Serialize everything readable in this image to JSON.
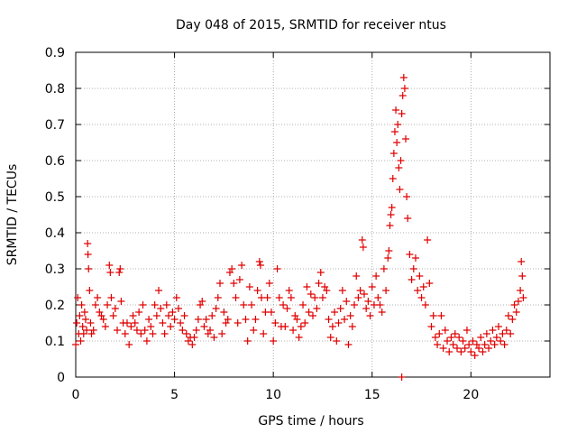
{
  "chart_data": {
    "type": "scatter",
    "title": "Day 048 of 2015, SRMTID for receiver ntus",
    "xlabel": "GPS time / hours",
    "ylabel": "SRMTID / TECUs",
    "xlim": [
      0,
      24
    ],
    "ylim": [
      0,
      0.9
    ],
    "xticks": [
      0,
      5,
      10,
      15,
      20
    ],
    "xtick_labels": [
      "0",
      "5",
      "10",
      "15",
      "20"
    ],
    "yticks": [
      0,
      0.1,
      0.2,
      0.3,
      0.4,
      0.5,
      0.6,
      0.7,
      0.8,
      0.9
    ],
    "ytick_labels": [
      "0",
      "0.1",
      "0.2",
      "0.3",
      "0.4",
      "0.5",
      "0.6",
      "0.7",
      "0.8",
      "0.9"
    ],
    "grid": true,
    "marker": "plus",
    "color": "#e00000",
    "series": [
      {
        "name": "SRMTID",
        "points": [
          [
            0.0,
            0.09
          ],
          [
            0.05,
            0.15
          ],
          [
            0.1,
            0.22
          ],
          [
            0.15,
            0.12
          ],
          [
            0.2,
            0.17
          ],
          [
            0.25,
            0.1
          ],
          [
            0.3,
            0.2
          ],
          [
            0.35,
            0.14
          ],
          [
            0.4,
            0.12
          ],
          [
            0.45,
            0.18
          ],
          [
            0.5,
            0.16
          ],
          [
            0.55,
            0.13
          ],
          [
            0.6,
            0.37
          ],
          [
            0.62,
            0.34
          ],
          [
            0.65,
            0.3
          ],
          [
            0.7,
            0.24
          ],
          [
            0.75,
            0.15
          ],
          [
            0.8,
            0.12
          ],
          [
            0.9,
            0.13
          ],
          [
            1.0,
            0.2
          ],
          [
            1.1,
            0.22
          ],
          [
            1.2,
            0.18
          ],
          [
            1.3,
            0.17
          ],
          [
            1.4,
            0.16
          ],
          [
            1.5,
            0.14
          ],
          [
            1.6,
            0.2
          ],
          [
            1.7,
            0.31
          ],
          [
            1.75,
            0.29
          ],
          [
            1.8,
            0.22
          ],
          [
            1.9,
            0.17
          ],
          [
            2.0,
            0.19
          ],
          [
            2.1,
            0.13
          ],
          [
            2.2,
            0.29
          ],
          [
            2.25,
            0.3
          ],
          [
            2.3,
            0.21
          ],
          [
            2.4,
            0.15
          ],
          [
            2.5,
            0.12
          ],
          [
            2.6,
            0.15
          ],
          [
            2.7,
            0.09
          ],
          [
            2.8,
            0.14
          ],
          [
            2.9,
            0.17
          ],
          [
            3.0,
            0.15
          ],
          [
            3.1,
            0.13
          ],
          [
            3.2,
            0.18
          ],
          [
            3.3,
            0.12
          ],
          [
            3.4,
            0.2
          ],
          [
            3.5,
            0.13
          ],
          [
            3.6,
            0.1
          ],
          [
            3.7,
            0.16
          ],
          [
            3.8,
            0.14
          ],
          [
            3.9,
            0.12
          ],
          [
            4.0,
            0.2
          ],
          [
            4.1,
            0.17
          ],
          [
            4.2,
            0.24
          ],
          [
            4.3,
            0.19
          ],
          [
            4.4,
            0.15
          ],
          [
            4.5,
            0.12
          ],
          [
            4.6,
            0.2
          ],
          [
            4.7,
            0.17
          ],
          [
            4.8,
            0.14
          ],
          [
            4.9,
            0.18
          ],
          [
            5.0,
            0.16
          ],
          [
            5.1,
            0.22
          ],
          [
            5.2,
            0.19
          ],
          [
            5.3,
            0.15
          ],
          [
            5.4,
            0.13
          ],
          [
            5.5,
            0.17
          ],
          [
            5.6,
            0.12
          ],
          [
            5.7,
            0.1
          ],
          [
            5.8,
            0.11
          ],
          [
            5.9,
            0.09
          ],
          [
            6.0,
            0.11
          ],
          [
            6.1,
            0.13
          ],
          [
            6.2,
            0.16
          ],
          [
            6.3,
            0.2
          ],
          [
            6.4,
            0.21
          ],
          [
            6.5,
            0.14
          ],
          [
            6.6,
            0.16
          ],
          [
            6.7,
            0.12
          ],
          [
            6.8,
            0.13
          ],
          [
            6.9,
            0.17
          ],
          [
            7.0,
            0.11
          ],
          [
            7.1,
            0.19
          ],
          [
            7.2,
            0.22
          ],
          [
            7.3,
            0.26
          ],
          [
            7.4,
            0.12
          ],
          [
            7.5,
            0.18
          ],
          [
            7.6,
            0.15
          ],
          [
            7.7,
            0.16
          ],
          [
            7.8,
            0.29
          ],
          [
            7.9,
            0.3
          ],
          [
            8.0,
            0.26
          ],
          [
            8.1,
            0.22
          ],
          [
            8.2,
            0.15
          ],
          [
            8.3,
            0.27
          ],
          [
            8.4,
            0.31
          ],
          [
            8.5,
            0.2
          ],
          [
            8.6,
            0.16
          ],
          [
            8.7,
            0.1
          ],
          [
            8.8,
            0.25
          ],
          [
            8.9,
            0.2
          ],
          [
            9.0,
            0.13
          ],
          [
            9.1,
            0.16
          ],
          [
            9.2,
            0.24
          ],
          [
            9.3,
            0.32
          ],
          [
            9.35,
            0.31
          ],
          [
            9.4,
            0.22
          ],
          [
            9.5,
            0.12
          ],
          [
            9.6,
            0.18
          ],
          [
            9.7,
            0.22
          ],
          [
            9.8,
            0.26
          ],
          [
            9.9,
            0.18
          ],
          [
            10.0,
            0.1
          ],
          [
            10.1,
            0.15
          ],
          [
            10.2,
            0.3
          ],
          [
            10.3,
            0.22
          ],
          [
            10.4,
            0.14
          ],
          [
            10.5,
            0.2
          ],
          [
            10.6,
            0.14
          ],
          [
            10.7,
            0.19
          ],
          [
            10.8,
            0.24
          ],
          [
            10.9,
            0.22
          ],
          [
            11.0,
            0.13
          ],
          [
            11.1,
            0.17
          ],
          [
            11.2,
            0.16
          ],
          [
            11.3,
            0.11
          ],
          [
            11.4,
            0.14
          ],
          [
            11.5,
            0.2
          ],
          [
            11.6,
            0.15
          ],
          [
            11.7,
            0.25
          ],
          [
            11.8,
            0.18
          ],
          [
            11.9,
            0.23
          ],
          [
            12.0,
            0.17
          ],
          [
            12.1,
            0.22
          ],
          [
            12.2,
            0.19
          ],
          [
            12.3,
            0.26
          ],
          [
            12.4,
            0.29
          ],
          [
            12.5,
            0.22
          ],
          [
            12.6,
            0.25
          ],
          [
            12.7,
            0.24
          ],
          [
            12.8,
            0.16
          ],
          [
            12.9,
            0.11
          ],
          [
            13.0,
            0.14
          ],
          [
            13.1,
            0.18
          ],
          [
            13.2,
            0.1
          ],
          [
            13.3,
            0.15
          ],
          [
            13.4,
            0.19
          ],
          [
            13.5,
            0.24
          ],
          [
            13.6,
            0.16
          ],
          [
            13.7,
            0.21
          ],
          [
            13.8,
            0.09
          ],
          [
            13.9,
            0.17
          ],
          [
            14.0,
            0.14
          ],
          [
            14.1,
            0.2
          ],
          [
            14.2,
            0.28
          ],
          [
            14.3,
            0.22
          ],
          [
            14.4,
            0.24
          ],
          [
            14.5,
            0.38
          ],
          [
            14.55,
            0.36
          ],
          [
            14.6,
            0.23
          ],
          [
            14.7,
            0.19
          ],
          [
            14.8,
            0.21
          ],
          [
            14.9,
            0.17
          ],
          [
            15.0,
            0.25
          ],
          [
            15.1,
            0.2
          ],
          [
            15.2,
            0.28
          ],
          [
            15.3,
            0.22
          ],
          [
            15.4,
            0.2
          ],
          [
            15.5,
            0.18
          ],
          [
            15.6,
            0.3
          ],
          [
            15.7,
            0.24
          ],
          [
            15.8,
            0.33
          ],
          [
            15.85,
            0.35
          ],
          [
            15.9,
            0.42
          ],
          [
            15.95,
            0.45
          ],
          [
            16.0,
            0.47
          ],
          [
            16.05,
            0.55
          ],
          [
            16.1,
            0.62
          ],
          [
            16.15,
            0.68
          ],
          [
            16.2,
            0.74
          ],
          [
            16.25,
            0.65
          ],
          [
            16.3,
            0.7
          ],
          [
            16.35,
            0.58
          ],
          [
            16.4,
            0.52
          ],
          [
            16.45,
            0.6
          ],
          [
            16.5,
            0.73
          ],
          [
            16.55,
            0.78
          ],
          [
            16.6,
            0.83
          ],
          [
            16.65,
            0.8
          ],
          [
            16.7,
            0.66
          ],
          [
            16.75,
            0.5
          ],
          [
            16.8,
            0.44
          ],
          [
            16.9,
            0.34
          ],
          [
            17.0,
            0.27
          ],
          [
            17.1,
            0.3
          ],
          [
            17.2,
            0.33
          ],
          [
            17.3,
            0.24
          ],
          [
            17.4,
            0.28
          ],
          [
            17.5,
            0.22
          ],
          [
            17.6,
            0.25
          ],
          [
            17.7,
            0.2
          ],
          [
            17.8,
            0.38
          ],
          [
            17.9,
            0.26
          ],
          [
            18.0,
            0.14
          ],
          [
            18.1,
            0.17
          ],
          [
            18.2,
            0.11
          ],
          [
            18.3,
            0.09
          ],
          [
            18.4,
            0.12
          ],
          [
            18.5,
            0.17
          ],
          [
            18.6,
            0.08
          ],
          [
            18.7,
            0.13
          ],
          [
            18.8,
            0.1
          ],
          [
            18.9,
            0.07
          ],
          [
            19.0,
            0.11
          ],
          [
            19.1,
            0.09
          ],
          [
            19.2,
            0.12
          ],
          [
            19.3,
            0.08
          ],
          [
            19.4,
            0.11
          ],
          [
            19.5,
            0.07
          ],
          [
            19.6,
            0.1
          ],
          [
            19.7,
            0.08
          ],
          [
            19.8,
            0.13
          ],
          [
            19.9,
            0.09
          ],
          [
            20.0,
            0.07
          ],
          [
            20.1,
            0.1
          ],
          [
            20.2,
            0.06
          ],
          [
            20.3,
            0.09
          ],
          [
            20.4,
            0.08
          ],
          [
            20.5,
            0.11
          ],
          [
            20.6,
            0.07
          ],
          [
            20.7,
            0.09
          ],
          [
            20.8,
            0.12
          ],
          [
            20.9,
            0.08
          ],
          [
            21.0,
            0.1
          ],
          [
            21.1,
            0.13
          ],
          [
            21.2,
            0.09
          ],
          [
            21.3,
            0.11
          ],
          [
            21.4,
            0.14
          ],
          [
            21.5,
            0.1
          ],
          [
            21.6,
            0.12
          ],
          [
            21.7,
            0.09
          ],
          [
            21.8,
            0.13
          ],
          [
            21.9,
            0.17
          ],
          [
            22.0,
            0.12
          ],
          [
            22.1,
            0.16
          ],
          [
            22.2,
            0.2
          ],
          [
            22.3,
            0.18
          ],
          [
            22.4,
            0.21
          ],
          [
            22.5,
            0.24
          ],
          [
            22.55,
            0.32
          ],
          [
            22.6,
            0.28
          ],
          [
            22.65,
            0.22
          ],
          [
            16.5,
            0.0
          ]
        ]
      }
    ]
  }
}
